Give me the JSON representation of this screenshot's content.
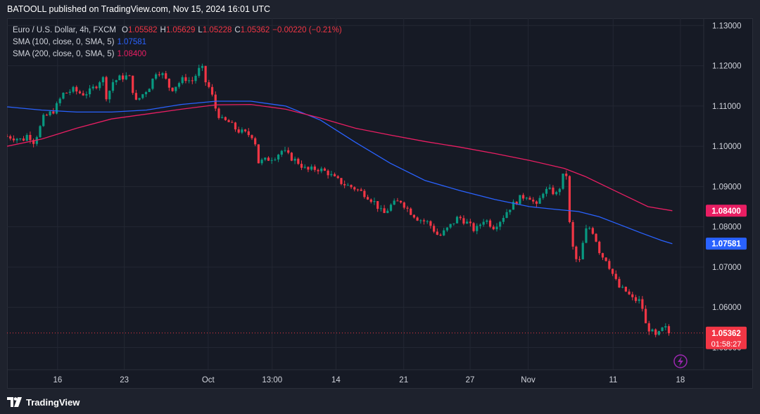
{
  "header": {
    "publisher": "BATOOLL published on TradingView.com, Nov 15, 2024 16:01 UTC"
  },
  "legend": {
    "symbol": "Euro / U.S. Dollar, 4h, FXCM",
    "o_label": "O",
    "o_value": "1.05582",
    "h_label": "H",
    "h_value": "1.05629",
    "l_label": "L",
    "l_value": "1.05228",
    "c_label": "C",
    "c_value": "1.05362",
    "change": "−0.00220 (−0.21%)",
    "sma100_label": "SMA (100, close, 0, SMA, 5)",
    "sma100_value": "1.07581",
    "sma200_label": "SMA (200, close, 0, SMA, 5)",
    "sma200_value": "1.08400"
  },
  "footer": {
    "brand": "TradingView"
  },
  "colors": {
    "up": "#089981",
    "down": "#f23645",
    "sma100": "#2962ff",
    "sma200": "#e91e63",
    "axis_text": "#d1d4dc",
    "grid": "#232733"
  },
  "chart_data": {
    "type": "line",
    "title": "Euro / U.S. Dollar, 4h, FXCM",
    "y_ticks": [
      "1.13000",
      "1.12000",
      "1.11000",
      "1.10000",
      "1.09000",
      "1.08000",
      "1.07000",
      "1.06000",
      "1.05000"
    ],
    "x_ticks": [
      {
        "label": "16",
        "t": 0.0726
      },
      {
        "label": "23",
        "t": 0.1683
      },
      {
        "label": "Oct",
        "t": 0.2887
      },
      {
        "label": "13:00",
        "t": 0.3806
      },
      {
        "label": "14",
        "t": 0.4721
      },
      {
        "label": "21",
        "t": 0.5694
      },
      {
        "label": "27",
        "t": 0.6647
      },
      {
        "label": "Nov",
        "t": 0.748
      },
      {
        "label": "11",
        "t": 0.87
      },
      {
        "label": "18",
        "t": 0.9666
      }
    ],
    "ylim": [
      1.0445,
      1.1318
    ],
    "price_label": "1.05362",
    "countdown": "01:58:27",
    "sma100_label": "1.07581",
    "sma200_label": "1.08400",
    "price_path": [
      [
        0.0,
        1.1025
      ],
      [
        0.014,
        1.102
      ],
      [
        0.022,
        1.1015
      ],
      [
        0.03,
        1.103
      ],
      [
        0.038,
        1.1012
      ],
      [
        0.045,
        1.1035
      ],
      [
        0.052,
        1.107
      ],
      [
        0.06,
        1.108
      ],
      [
        0.068,
        1.109
      ],
      [
        0.08,
        1.113
      ],
      [
        0.095,
        1.114
      ],
      [
        0.108,
        1.113
      ],
      [
        0.118,
        1.1135
      ],
      [
        0.13,
        1.1155
      ],
      [
        0.137,
        1.1175
      ],
      [
        0.143,
        1.112
      ],
      [
        0.152,
        1.116
      ],
      [
        0.162,
        1.117
      ],
      [
        0.175,
        1.1175
      ],
      [
        0.185,
        1.111
      ],
      [
        0.195,
        1.113
      ],
      [
        0.205,
        1.115
      ],
      [
        0.215,
        1.119
      ],
      [
        0.225,
        1.1175
      ],
      [
        0.235,
        1.114
      ],
      [
        0.245,
        1.1155
      ],
      [
        0.255,
        1.117
      ],
      [
        0.265,
        1.116
      ],
      [
        0.272,
        1.118
      ],
      [
        0.279,
        1.12
      ],
      [
        0.285,
        1.116
      ],
      [
        0.292,
        1.114
      ],
      [
        0.3,
        1.109
      ],
      [
        0.308,
        1.1065
      ],
      [
        0.318,
        1.106
      ],
      [
        0.33,
        1.104
      ],
      [
        0.345,
        1.103
      ],
      [
        0.355,
        1.1025
      ],
      [
        0.36,
        1.096
      ],
      [
        0.37,
        1.0965
      ],
      [
        0.385,
        1.0975
      ],
      [
        0.395,
        1.099
      ],
      [
        0.405,
        1.0975
      ],
      [
        0.418,
        1.096
      ],
      [
        0.43,
        1.094
      ],
      [
        0.445,
        1.0945
      ],
      [
        0.46,
        1.0935
      ],
      [
        0.47,
        1.092
      ],
      [
        0.485,
        1.0905
      ],
      [
        0.5,
        1.0895
      ],
      [
        0.515,
        1.088
      ],
      [
        0.528,
        1.086
      ],
      [
        0.54,
        1.083
      ],
      [
        0.552,
        1.0855
      ],
      [
        0.565,
        1.0865
      ],
      [
        0.577,
        1.084
      ],
      [
        0.59,
        1.082
      ],
      [
        0.605,
        1.081
      ],
      [
        0.62,
        1.0775
      ],
      [
        0.635,
        1.08
      ],
      [
        0.648,
        1.0825
      ],
      [
        0.66,
        1.081
      ],
      [
        0.672,
        1.079
      ],
      [
        0.685,
        1.082
      ],
      [
        0.698,
        1.08
      ],
      [
        0.71,
        1.082
      ],
      [
        0.72,
        1.0845
      ],
      [
        0.735,
        1.087
      ],
      [
        0.748,
        1.088
      ],
      [
        0.76,
        1.085
      ],
      [
        0.77,
        1.089
      ],
      [
        0.78,
        1.089
      ],
      [
        0.79,
        1.088
      ],
      [
        0.798,
        1.0925
      ],
      [
        0.804,
        1.093
      ],
      [
        0.808,
        1.079
      ],
      [
        0.815,
        1.072
      ],
      [
        0.822,
        1.0715
      ],
      [
        0.83,
        1.079
      ],
      [
        0.838,
        1.08
      ],
      [
        0.845,
        1.077
      ],
      [
        0.852,
        1.073
      ],
      [
        0.86,
        1.072
      ],
      [
        0.87,
        1.068
      ],
      [
        0.878,
        1.065
      ],
      [
        0.888,
        1.064
      ],
      [
        0.898,
        1.062
      ],
      [
        0.91,
        1.0615
      ],
      [
        0.917,
        1.0555
      ],
      [
        0.925,
        1.054
      ],
      [
        0.932,
        1.0525
      ],
      [
        0.94,
        1.0545
      ],
      [
        0.946,
        1.0548
      ],
      [
        0.95,
        1.0536
      ]
    ],
    "series": [
      {
        "name": "SMA (100, close, 0, SMA, 5)",
        "color": "#2962ff",
        "points": [
          [
            0.0,
            1.1098
          ],
          [
            0.05,
            1.109
          ],
          [
            0.1,
            1.1085
          ],
          [
            0.15,
            1.1085
          ],
          [
            0.2,
            1.109
          ],
          [
            0.25,
            1.1104
          ],
          [
            0.3,
            1.1112
          ],
          [
            0.35,
            1.1112
          ],
          [
            0.4,
            1.11
          ],
          [
            0.45,
            1.1065
          ],
          [
            0.5,
            1.101
          ],
          [
            0.55,
            1.0958
          ],
          [
            0.6,
            1.0915
          ],
          [
            0.65,
            1.089
          ],
          [
            0.7,
            1.0868
          ],
          [
            0.75,
            1.085
          ],
          [
            0.79,
            1.0843
          ],
          [
            0.82,
            1.0838
          ],
          [
            0.85,
            1.0825
          ],
          [
            0.88,
            1.0805
          ],
          [
            0.91,
            1.0785
          ],
          [
            0.94,
            1.0766
          ],
          [
            0.955,
            1.0758
          ]
        ]
      },
      {
        "name": "SMA (200, close, 0, SMA, 5)",
        "color": "#e91e63",
        "points": [
          [
            0.0,
            1.1
          ],
          [
            0.05,
            1.1018
          ],
          [
            0.1,
            1.1045
          ],
          [
            0.15,
            1.1068
          ],
          [
            0.2,
            1.108
          ],
          [
            0.25,
            1.1092
          ],
          [
            0.3,
            1.1103
          ],
          [
            0.35,
            1.1104
          ],
          [
            0.4,
            1.1092
          ],
          [
            0.45,
            1.107
          ],
          [
            0.5,
            1.1045
          ],
          [
            0.55,
            1.1028
          ],
          [
            0.6,
            1.1012
          ],
          [
            0.65,
            1.0998
          ],
          [
            0.7,
            1.0982
          ],
          [
            0.75,
            1.0965
          ],
          [
            0.8,
            1.0945
          ],
          [
            0.83,
            1.0925
          ],
          [
            0.86,
            1.09
          ],
          [
            0.89,
            1.0875
          ],
          [
            0.92,
            1.085
          ],
          [
            0.955,
            1.084
          ]
        ]
      }
    ]
  }
}
